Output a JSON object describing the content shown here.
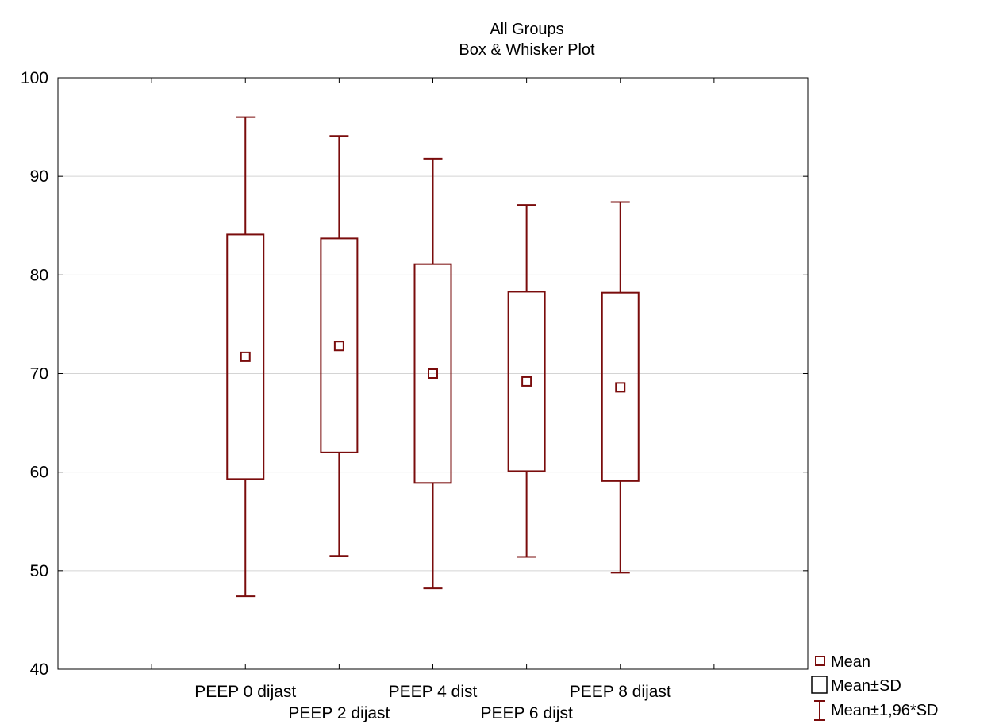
{
  "chart_data": {
    "type": "box",
    "title": "All Groups",
    "subtitle": "Box & Whisker Plot",
    "xlabel": "",
    "ylabel": "",
    "ylim": [
      40,
      100
    ],
    "yticks": [
      40,
      50,
      60,
      70,
      80,
      90,
      100
    ],
    "grid": true,
    "legend_position": "bottom-right",
    "categories": [
      "PEEP 0 dijast",
      "PEEP 2 dijast",
      "PEEP 4 dist",
      "PEEP 6 dijst",
      "PEEP 8 dijast"
    ],
    "series": [
      {
        "mean": [
          71.7,
          72.8,
          70.0,
          69.2,
          68.6
        ],
        "box_low": [
          59.3,
          62.0,
          58.9,
          60.1,
          59.1
        ],
        "box_high": [
          84.1,
          83.7,
          81.1,
          78.3,
          78.2
        ],
        "whisker_low": [
          47.4,
          51.5,
          48.2,
          51.4,
          49.8
        ],
        "whisker_high": [
          96.0,
          94.1,
          91.8,
          87.1,
          87.4
        ]
      }
    ],
    "legend": [
      "Mean",
      "Mean±SD",
      "Mean±1,96*SD"
    ],
    "colors": {
      "series": "#7a0c0c",
      "grid": "#d4d4d4",
      "axis": "#000000"
    }
  }
}
